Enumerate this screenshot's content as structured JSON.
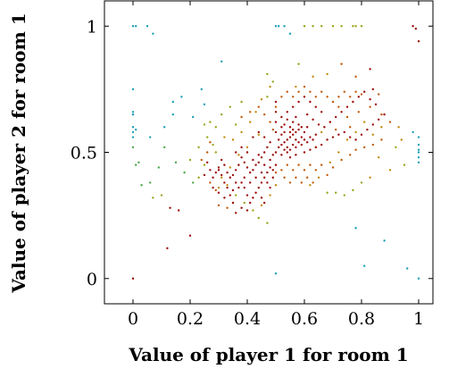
{
  "chart_data": {
    "type": "scatter",
    "title": "",
    "xlabel": "Value of player 1 for room 1",
    "ylabel": "Value of player 2 for room 1",
    "xlim": [
      -0.1,
      1.05
    ],
    "ylim": [
      -0.1,
      1.1
    ],
    "xticks": [
      0,
      0.2,
      0.4,
      0.6,
      0.8,
      1
    ],
    "xtick_labels": [
      "0",
      "0.2",
      "0.4",
      "0.6",
      "0.8",
      "1"
    ],
    "yticks": [
      0,
      0.5,
      1
    ],
    "ytick_labels": [
      "0",
      "0.5",
      "1"
    ],
    "grid": false,
    "legend": "none",
    "color_scale": [
      "#1a9fb8",
      "#4aa64a",
      "#9ba31a",
      "#c28a0a",
      "#c25a0a",
      "#9b0a0a"
    ],
    "points": [
      [
        0.0,
        1.0,
        0
      ],
      [
        0.01,
        1.0,
        0
      ],
      [
        0.05,
        1.0,
        0
      ],
      [
        0.07,
        0.97,
        0
      ],
      [
        0.14,
        0.7,
        0
      ],
      [
        0.0,
        0.75,
        0
      ],
      [
        0.0,
        0.66,
        0
      ],
      [
        0.0,
        0.65,
        0
      ],
      [
        0.0,
        0.6,
        0
      ],
      [
        0.0,
        0.58,
        0
      ],
      [
        0.01,
        0.59,
        0
      ],
      [
        0.0,
        0.56,
        0
      ],
      [
        0.06,
        0.56,
        0
      ],
      [
        0.11,
        0.6,
        0
      ],
      [
        0.14,
        0.65,
        0
      ],
      [
        0.17,
        0.72,
        0
      ],
      [
        0.24,
        0.75,
        0
      ],
      [
        0.31,
        0.86,
        0
      ],
      [
        0.25,
        0.69,
        0
      ],
      [
        0.21,
        0.64,
        0
      ],
      [
        0.5,
        1.0,
        0
      ],
      [
        0.51,
        1.0,
        0
      ],
      [
        0.53,
        1.0,
        0
      ],
      [
        0.55,
        0.97,
        0
      ],
      [
        0.99,
        0.99,
        5
      ],
      [
        0.98,
        1.0,
        5
      ],
      [
        1.0,
        0.94,
        5
      ],
      [
        1.0,
        0.56,
        0
      ],
      [
        1.0,
        0.53,
        0
      ],
      [
        1.0,
        0.51,
        0
      ],
      [
        1.0,
        0.5,
        0
      ],
      [
        1.0,
        0.48,
        0
      ],
      [
        1.0,
        0.46,
        0
      ],
      [
        0.98,
        0.58,
        0
      ],
      [
        1.0,
        0.0,
        0
      ],
      [
        0.96,
        0.04,
        0
      ],
      [
        0.88,
        0.15,
        0
      ],
      [
        0.78,
        0.2,
        0
      ],
      [
        0.81,
        0.05,
        0
      ],
      [
        0.5,
        0.02,
        0
      ],
      [
        0.0,
        0.0,
        5
      ],
      [
        0.12,
        0.12,
        5
      ],
      [
        0.2,
        0.17,
        5
      ],
      [
        0.13,
        0.28,
        5
      ],
      [
        0.6,
        1.0,
        2
      ],
      [
        0.63,
        1.0,
        2
      ],
      [
        0.66,
        1.0,
        2
      ],
      [
        0.7,
        1.0,
        2
      ],
      [
        0.73,
        1.0,
        2
      ],
      [
        0.77,
        1.0,
        2
      ],
      [
        0.78,
        1.0,
        2
      ],
      [
        0.8,
        1.0,
        2
      ],
      [
        0.58,
        0.85,
        2
      ],
      [
        0.63,
        0.8,
        3
      ],
      [
        0.47,
        0.81,
        2
      ],
      [
        0.49,
        0.78,
        2
      ],
      [
        0.47,
        0.72,
        2
      ],
      [
        0.57,
        0.76,
        3
      ],
      [
        0.68,
        0.81,
        3
      ],
      [
        0.73,
        0.85,
        4
      ],
      [
        0.78,
        0.8,
        4
      ],
      [
        0.8,
        0.73,
        4
      ],
      [
        0.83,
        0.83,
        5
      ],
      [
        0.84,
        0.75,
        5
      ],
      [
        0.86,
        0.73,
        4
      ],
      [
        0.94,
        0.55,
        3
      ],
      [
        0.93,
        0.6,
        3
      ],
      [
        0.92,
        0.52,
        2
      ],
      [
        0.95,
        0.45,
        2
      ],
      [
        0.9,
        0.43,
        3
      ],
      [
        0.86,
        0.48,
        3
      ],
      [
        0.83,
        0.4,
        3
      ],
      [
        0.8,
        0.38,
        2
      ],
      [
        0.77,
        0.35,
        2
      ],
      [
        0.74,
        0.33,
        2
      ],
      [
        0.71,
        0.34,
        2
      ],
      [
        0.68,
        0.34,
        2
      ],
      [
        0.62,
        0.37,
        3
      ],
      [
        0.65,
        0.4,
        3
      ],
      [
        0.69,
        0.46,
        3
      ],
      [
        0.72,
        0.5,
        3
      ],
      [
        0.75,
        0.55,
        3
      ],
      [
        0.78,
        0.58,
        3
      ],
      [
        0.81,
        0.62,
        3
      ],
      [
        0.84,
        0.57,
        3
      ],
      [
        0.87,
        0.6,
        3
      ],
      [
        0.75,
        0.64,
        4
      ],
      [
        0.72,
        0.68,
        4
      ],
      [
        0.69,
        0.62,
        3
      ],
      [
        0.66,
        0.58,
        3
      ],
      [
        0.64,
        0.52,
        3
      ],
      [
        0.71,
        0.59,
        4
      ],
      [
        0.76,
        0.6,
        4
      ],
      [
        0.79,
        0.66,
        4
      ],
      [
        0.83,
        0.68,
        4
      ],
      [
        0.87,
        0.65,
        4
      ],
      [
        0.9,
        0.62,
        4
      ],
      [
        0.2,
        0.47,
        2
      ],
      [
        0.23,
        0.52,
        2
      ],
      [
        0.26,
        0.56,
        2
      ],
      [
        0.29,
        0.6,
        2
      ],
      [
        0.31,
        0.65,
        2
      ],
      [
        0.34,
        0.68,
        2
      ],
      [
        0.38,
        0.7,
        2
      ],
      [
        0.36,
        0.61,
        2
      ],
      [
        0.32,
        0.56,
        3
      ],
      [
        0.29,
        0.5,
        2
      ],
      [
        0.25,
        0.45,
        2
      ],
      [
        0.23,
        0.4,
        2
      ],
      [
        0.21,
        0.38,
        1
      ],
      [
        0.18,
        0.42,
        1
      ],
      [
        0.15,
        0.46,
        1
      ],
      [
        0.11,
        0.52,
        1
      ],
      [
        0.09,
        0.44,
        1
      ],
      [
        0.06,
        0.38,
        1
      ],
      [
        0.02,
        0.46,
        1
      ],
      [
        0.01,
        0.45,
        1
      ],
      [
        0.0,
        0.52,
        1
      ],
      [
        0.03,
        0.37,
        1
      ],
      [
        0.07,
        0.32,
        2
      ],
      [
        0.1,
        0.33,
        2
      ],
      [
        0.25,
        0.61,
        2
      ],
      [
        0.27,
        0.62,
        2
      ],
      [
        0.28,
        0.53,
        2
      ],
      [
        0.35,
        0.55,
        3
      ],
      [
        0.38,
        0.58,
        3
      ],
      [
        0.41,
        0.62,
        3
      ],
      [
        0.43,
        0.66,
        3
      ],
      [
        0.45,
        0.71,
        3
      ],
      [
        0.48,
        0.76,
        3
      ],
      [
        0.44,
        0.57,
        3
      ],
      [
        0.4,
        0.52,
        3
      ],
      [
        0.37,
        0.49,
        3
      ],
      [
        0.34,
        0.44,
        3
      ],
      [
        0.31,
        0.4,
        3
      ],
      [
        0.3,
        0.36,
        3
      ],
      [
        0.33,
        0.37,
        3
      ],
      [
        0.36,
        0.33,
        2
      ],
      [
        0.39,
        0.3,
        2
      ],
      [
        0.42,
        0.27,
        2
      ],
      [
        0.44,
        0.24,
        2
      ],
      [
        0.47,
        0.22,
        2
      ],
      [
        0.45,
        0.29,
        3
      ],
      [
        0.48,
        0.33,
        3
      ],
      [
        0.5,
        0.37,
        3
      ],
      [
        0.48,
        0.47,
        5
      ],
      [
        0.49,
        0.49,
        5
      ],
      [
        0.5,
        0.5,
        5
      ],
      [
        0.51,
        0.52,
        5
      ],
      [
        0.52,
        0.53,
        5
      ],
      [
        0.53,
        0.54,
        5
      ],
      [
        0.54,
        0.55,
        5
      ],
      [
        0.55,
        0.56,
        5
      ],
      [
        0.56,
        0.57,
        5
      ],
      [
        0.57,
        0.58,
        5
      ],
      [
        0.58,
        0.59,
        5
      ],
      [
        0.59,
        0.6,
        5
      ],
      [
        0.5,
        0.58,
        5
      ],
      [
        0.5,
        0.62,
        5
      ],
      [
        0.5,
        0.66,
        5
      ],
      [
        0.5,
        0.7,
        5
      ],
      [
        0.51,
        0.55,
        5
      ],
      [
        0.52,
        0.57,
        5
      ],
      [
        0.53,
        0.58,
        5
      ],
      [
        0.53,
        0.51,
        5
      ],
      [
        0.54,
        0.52,
        5
      ],
      [
        0.55,
        0.51,
        5
      ],
      [
        0.56,
        0.53,
        5
      ],
      [
        0.57,
        0.52,
        5
      ],
      [
        0.58,
        0.54,
        5
      ],
      [
        0.59,
        0.53,
        5
      ],
      [
        0.6,
        0.55,
        5
      ],
      [
        0.61,
        0.54,
        5
      ],
      [
        0.62,
        0.56,
        5
      ],
      [
        0.63,
        0.55,
        5
      ],
      [
        0.64,
        0.57,
        5
      ],
      [
        0.55,
        0.6,
        5
      ],
      [
        0.56,
        0.62,
        5
      ],
      [
        0.57,
        0.64,
        5
      ],
      [
        0.58,
        0.61,
        5
      ],
      [
        0.54,
        0.63,
        5
      ],
      [
        0.53,
        0.61,
        5
      ],
      [
        0.52,
        0.6,
        5
      ],
      [
        0.55,
        0.58,
        5
      ],
      [
        0.56,
        0.59,
        5
      ],
      [
        0.6,
        0.58,
        5
      ],
      [
        0.61,
        0.6,
        5
      ],
      [
        0.59,
        0.56,
        5
      ],
      [
        0.57,
        0.55,
        5
      ],
      [
        0.54,
        0.5,
        5
      ],
      [
        0.52,
        0.49,
        5
      ],
      [
        0.55,
        0.48,
        5
      ],
      [
        0.57,
        0.49,
        5
      ],
      [
        0.6,
        0.5,
        5
      ],
      [
        0.62,
        0.51,
        5
      ],
      [
        0.64,
        0.52,
        5
      ],
      [
        0.66,
        0.53,
        5
      ],
      [
        0.68,
        0.55,
        5
      ],
      [
        0.7,
        0.56,
        5
      ],
      [
        0.72,
        0.57,
        5
      ],
      [
        0.74,
        0.58,
        5
      ],
      [
        0.76,
        0.56,
        5
      ],
      [
        0.78,
        0.55,
        5
      ],
      [
        0.8,
        0.57,
        5
      ],
      [
        0.82,
        0.59,
        5
      ],
      [
        0.84,
        0.61,
        5
      ],
      [
        0.86,
        0.63,
        5
      ],
      [
        0.88,
        0.65,
        5
      ],
      [
        0.67,
        0.6,
        5
      ],
      [
        0.69,
        0.62,
        5
      ],
      [
        0.71,
        0.64,
        5
      ],
      [
        0.73,
        0.66,
        5
      ],
      [
        0.75,
        0.68,
        5
      ],
      [
        0.77,
        0.7,
        5
      ],
      [
        0.79,
        0.72,
        5
      ],
      [
        0.81,
        0.74,
        5
      ],
      [
        0.83,
        0.71,
        5
      ],
      [
        0.85,
        0.69,
        5
      ],
      [
        0.66,
        0.66,
        5
      ],
      [
        0.64,
        0.68,
        5
      ],
      [
        0.62,
        0.7,
        5
      ],
      [
        0.6,
        0.72,
        5
      ],
      [
        0.58,
        0.7,
        5
      ],
      [
        0.56,
        0.68,
        5
      ],
      [
        0.54,
        0.66,
        5
      ],
      [
        0.52,
        0.64,
        5
      ],
      [
        0.61,
        0.65,
        5
      ],
      [
        0.63,
        0.63,
        5
      ],
      [
        0.65,
        0.61,
        5
      ],
      [
        0.47,
        0.52,
        5
      ],
      [
        0.46,
        0.5,
        5
      ],
      [
        0.45,
        0.48,
        5
      ],
      [
        0.44,
        0.46,
        5
      ],
      [
        0.43,
        0.45,
        5
      ],
      [
        0.42,
        0.43,
        5
      ],
      [
        0.41,
        0.42,
        5
      ],
      [
        0.4,
        0.44,
        5
      ],
      [
        0.39,
        0.46,
        5
      ],
      [
        0.38,
        0.48,
        5
      ],
      [
        0.37,
        0.45,
        5
      ],
      [
        0.36,
        0.43,
        5
      ],
      [
        0.35,
        0.41,
        5
      ],
      [
        0.34,
        0.4,
        5
      ],
      [
        0.33,
        0.42,
        5
      ],
      [
        0.32,
        0.45,
        5
      ],
      [
        0.31,
        0.47,
        5
      ],
      [
        0.3,
        0.44,
        5
      ],
      [
        0.29,
        0.42,
        5
      ],
      [
        0.28,
        0.4,
        5
      ],
      [
        0.27,
        0.43,
        5
      ],
      [
        0.26,
        0.46,
        5
      ],
      [
        0.48,
        0.44,
        5
      ],
      [
        0.47,
        0.42,
        5
      ],
      [
        0.46,
        0.4,
        5
      ],
      [
        0.45,
        0.38,
        5
      ],
      [
        0.44,
        0.36,
        5
      ],
      [
        0.43,
        0.34,
        5
      ],
      [
        0.42,
        0.32,
        5
      ],
      [
        0.41,
        0.3,
        5
      ],
      [
        0.4,
        0.33,
        5
      ],
      [
        0.39,
        0.36,
        5
      ],
      [
        0.38,
        0.38,
        5
      ],
      [
        0.37,
        0.36,
        5
      ],
      [
        0.36,
        0.38,
        5
      ],
      [
        0.35,
        0.35,
        5
      ],
      [
        0.34,
        0.33,
        5
      ],
      [
        0.33,
        0.36,
        5
      ],
      [
        0.32,
        0.38,
        5
      ],
      [
        0.31,
        0.41,
        5
      ],
      [
        0.39,
        0.4,
        5
      ],
      [
        0.41,
        0.38,
        5
      ],
      [
        0.43,
        0.4,
        5
      ],
      [
        0.45,
        0.42,
        5
      ],
      [
        0.46,
        0.45,
        5
      ],
      [
        0.44,
        0.49,
        5
      ],
      [
        0.42,
        0.47,
        5
      ],
      [
        0.4,
        0.5,
        5
      ],
      [
        0.38,
        0.52,
        5
      ],
      [
        0.36,
        0.5,
        5
      ],
      [
        0.48,
        0.54,
        5
      ],
      [
        0.46,
        0.56,
        5
      ],
      [
        0.44,
        0.58,
        5
      ],
      [
        0.42,
        0.56,
        5
      ],
      [
        0.47,
        0.38,
        5
      ],
      [
        0.48,
        0.36,
        5
      ],
      [
        0.38,
        0.28,
        5
      ],
      [
        0.35,
        0.3,
        5
      ],
      [
        0.32,
        0.32,
        5
      ],
      [
        0.3,
        0.34,
        5
      ],
      [
        0.28,
        0.36,
        5
      ],
      [
        0.4,
        0.27,
        5
      ],
      [
        0.45,
        0.32,
        5
      ],
      [
        0.46,
        0.3,
        5
      ],
      [
        0.49,
        0.4,
        5
      ],
      [
        0.49,
        0.43,
        5
      ],
      [
        0.5,
        0.45,
        5
      ],
      [
        0.16,
        0.27,
        5
      ],
      [
        0.3,
        0.43,
        5
      ],
      [
        0.25,
        0.41,
        5
      ],
      [
        0.36,
        0.26,
        5
      ],
      [
        0.3,
        0.29,
        4
      ],
      [
        0.33,
        0.28,
        4
      ],
      [
        0.29,
        0.35,
        4
      ],
      [
        0.27,
        0.38,
        4
      ],
      [
        0.24,
        0.47,
        4
      ],
      [
        0.26,
        0.5,
        4
      ],
      [
        0.27,
        0.54,
        4
      ],
      [
        0.38,
        0.64,
        4
      ],
      [
        0.41,
        0.66,
        4
      ],
      [
        0.44,
        0.68,
        4
      ],
      [
        0.46,
        0.65,
        4
      ],
      [
        0.48,
        0.62,
        4
      ],
      [
        0.49,
        0.59,
        4
      ],
      [
        0.5,
        0.68,
        4
      ],
      [
        0.52,
        0.72,
        4
      ],
      [
        0.54,
        0.74,
        4
      ],
      [
        0.56,
        0.72,
        4
      ],
      [
        0.58,
        0.74,
        4
      ],
      [
        0.6,
        0.76,
        4
      ],
      [
        0.62,
        0.74,
        4
      ],
      [
        0.64,
        0.72,
        4
      ],
      [
        0.66,
        0.74,
        4
      ],
      [
        0.68,
        0.72,
        4
      ],
      [
        0.7,
        0.7,
        4
      ],
      [
        0.72,
        0.72,
        4
      ],
      [
        0.74,
        0.74,
        4
      ],
      [
        0.76,
        0.72,
        4
      ],
      [
        0.78,
        0.74,
        4
      ],
      [
        0.66,
        0.45,
        4
      ],
      [
        0.64,
        0.43,
        4
      ],
      [
        0.62,
        0.45,
        4
      ],
      [
        0.6,
        0.43,
        4
      ],
      [
        0.58,
        0.45,
        4
      ],
      [
        0.56,
        0.43,
        4
      ],
      [
        0.54,
        0.45,
        4
      ],
      [
        0.52,
        0.43,
        4
      ],
      [
        0.5,
        0.42,
        4
      ],
      [
        0.53,
        0.4,
        4
      ],
      [
        0.55,
        0.38,
        4
      ],
      [
        0.57,
        0.4,
        4
      ],
      [
        0.59,
        0.38,
        4
      ],
      [
        0.61,
        0.4,
        4
      ],
      [
        0.63,
        0.38,
        4
      ],
      [
        0.68,
        0.41,
        4
      ],
      [
        0.7,
        0.44,
        4
      ],
      [
        0.73,
        0.47,
        4
      ],
      [
        0.76,
        0.49,
        4
      ],
      [
        0.78,
        0.51,
        4
      ],
      [
        0.81,
        0.52,
        4
      ],
      [
        0.84,
        0.53,
        4
      ],
      [
        0.87,
        0.55,
        4
      ]
    ]
  }
}
